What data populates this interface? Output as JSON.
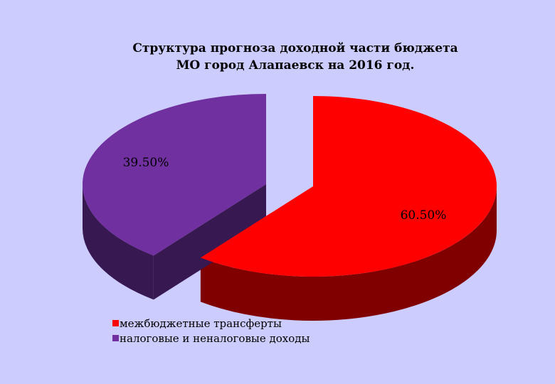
{
  "chart_data": {
    "type": "pie",
    "title_lines": [
      "Структура прогноза доходной части бюджета",
      "МО город Алапаевск на 2016 год."
    ],
    "slices": [
      {
        "name": "межбюджетные трансферты",
        "value": 60.5,
        "label": "60.50%",
        "color": "#ff0000",
        "side_color": "#800000"
      },
      {
        "name": "налоговые и неналоговые доходы",
        "value": 39.5,
        "label": "39.50%",
        "color": "#7030a0",
        "side_color": "#371850"
      }
    ],
    "style": "3d-exploded",
    "legend_position": "bottom-left"
  }
}
